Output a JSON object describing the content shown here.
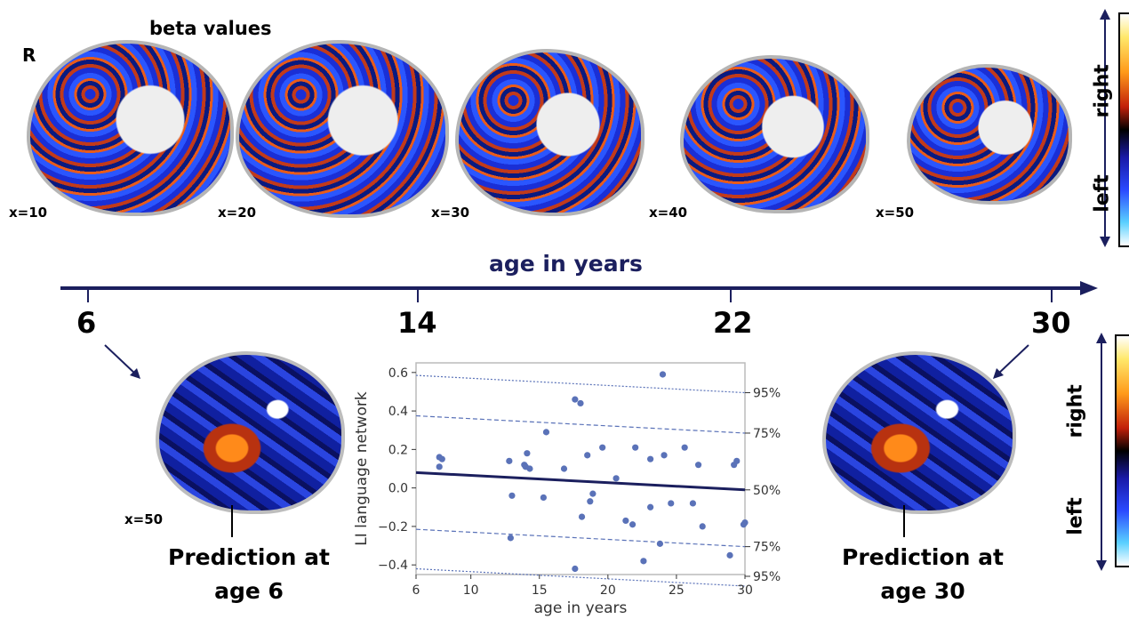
{
  "top_row": {
    "orientation_label": "R",
    "title": "beta values",
    "slices": [
      {
        "label": "x=10"
      },
      {
        "label": "x=20"
      },
      {
        "label": "x=30"
      },
      {
        "label": "x=40"
      },
      {
        "label": "x=50"
      }
    ]
  },
  "colorbar_labels": {
    "top": "right",
    "bottom": "left"
  },
  "timeline": {
    "title": "age in years",
    "ticks": [
      "6",
      "14",
      "22",
      "30"
    ],
    "color": "#1b1f5e"
  },
  "bottom_row": {
    "left_slice_label": "x=50",
    "left_prediction": {
      "line1": "Prediction at",
      "line2": "age 6"
    },
    "right_prediction": {
      "line1": "Prediction at",
      "line2": "age 30"
    }
  },
  "chart_data": {
    "type": "scatter",
    "xlabel": "age in years",
    "ylabel": "LI language network",
    "xlim": [
      6,
      30
    ],
    "ylim": [
      -0.45,
      0.65
    ],
    "x_ticks": [
      6,
      10,
      15,
      20,
      25,
      30
    ],
    "y_ticks": [
      -0.4,
      -0.2,
      0.0,
      0.2,
      0.4,
      0.6
    ],
    "y_tick_labels": [
      "−0.4",
      "−0.2",
      "0.0",
      "0.2",
      "0.4",
      "0.6"
    ],
    "grid": false,
    "points": [
      {
        "x": 7.7,
        "y": 0.16
      },
      {
        "x": 7.9,
        "y": 0.15
      },
      {
        "x": 7.7,
        "y": 0.11
      },
      {
        "x": 12.8,
        "y": 0.14
      },
      {
        "x": 13.0,
        "y": -0.04
      },
      {
        "x": 12.9,
        "y": -0.26
      },
      {
        "x": 13.9,
        "y": 0.12
      },
      {
        "x": 14.1,
        "y": 0.18
      },
      {
        "x": 14.3,
        "y": 0.1
      },
      {
        "x": 14.0,
        "y": 0.11
      },
      {
        "x": 15.3,
        "y": -0.05
      },
      {
        "x": 15.5,
        "y": 0.29
      },
      {
        "x": 16.8,
        "y": 0.1
      },
      {
        "x": 17.6,
        "y": 0.46
      },
      {
        "x": 18.0,
        "y": 0.44
      },
      {
        "x": 18.5,
        "y": 0.17
      },
      {
        "x": 18.7,
        "y": -0.07
      },
      {
        "x": 18.9,
        "y": -0.03
      },
      {
        "x": 18.1,
        "y": -0.15
      },
      {
        "x": 17.6,
        "y": -0.42
      },
      {
        "x": 19.6,
        "y": 0.21
      },
      {
        "x": 20.6,
        "y": 0.05
      },
      {
        "x": 21.3,
        "y": -0.17
      },
      {
        "x": 21.8,
        "y": -0.19
      },
      {
        "x": 22.0,
        "y": 0.21
      },
      {
        "x": 22.6,
        "y": -0.38
      },
      {
        "x": 23.1,
        "y": 0.15
      },
      {
        "x": 23.1,
        "y": -0.1
      },
      {
        "x": 23.8,
        "y": -0.29
      },
      {
        "x": 24.1,
        "y": 0.17
      },
      {
        "x": 24.0,
        "y": 0.59
      },
      {
        "x": 24.6,
        "y": -0.08
      },
      {
        "x": 25.6,
        "y": 0.21
      },
      {
        "x": 26.2,
        "y": -0.08
      },
      {
        "x": 26.6,
        "y": 0.12
      },
      {
        "x": 26.9,
        "y": -0.2
      },
      {
        "x": 28.9,
        "y": -0.35
      },
      {
        "x": 29.2,
        "y": 0.12
      },
      {
        "x": 29.4,
        "y": 0.14
      },
      {
        "x": 29.9,
        "y": -0.19
      },
      {
        "x": 30.0,
        "y": -0.18
      }
    ],
    "fit_line": {
      "x": [
        6,
        30
      ],
      "y": [
        0.08,
        -0.01
      ]
    },
    "percentile_lines": [
      {
        "label": "95%",
        "y_left": 0.585,
        "y_right": 0.495,
        "style": "dotted"
      },
      {
        "label": "75%",
        "y_left": 0.375,
        "y_right": 0.285,
        "style": "dashed"
      },
      {
        "label": "50%",
        "y_left": 0.08,
        "y_right": -0.01,
        "style": "solid"
      },
      {
        "label": "75%",
        "y_left": -0.215,
        "y_right": -0.305,
        "style": "dashed"
      },
      {
        "label": "95%",
        "y_left": -0.42,
        "y_right": -0.51,
        "style": "dotted"
      }
    ],
    "point_color": "#5a72b8",
    "line_color": "#1b1f5e"
  }
}
